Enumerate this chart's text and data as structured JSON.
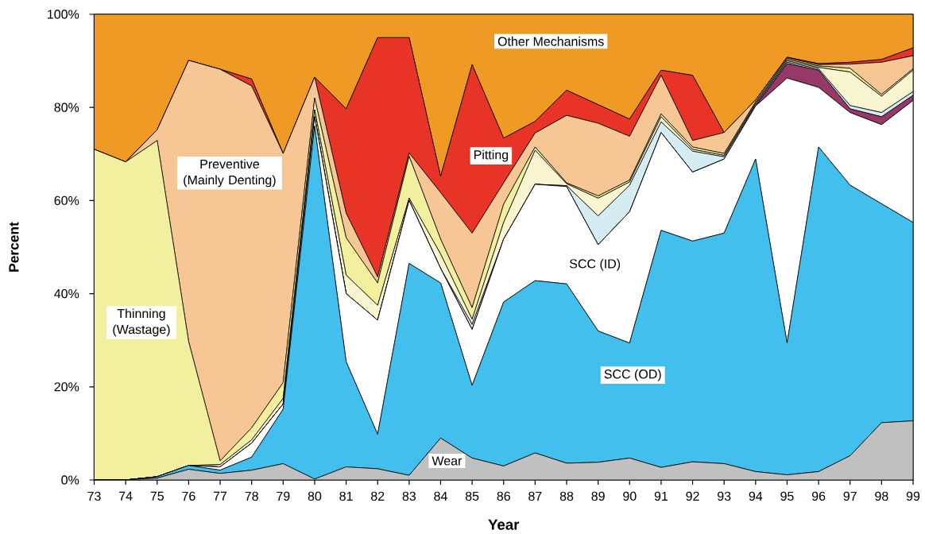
{
  "chart_data": {
    "type": "area",
    "stacked": true,
    "xlabel": "Year",
    "ylabel": "Percent",
    "x": [
      73,
      74,
      75,
      76,
      77,
      78,
      79,
      80,
      81,
      82,
      83,
      84,
      85,
      86,
      87,
      88,
      89,
      90,
      91,
      92,
      93,
      94,
      95,
      96,
      97,
      98,
      99
    ],
    "xlim": [
      73,
      99
    ],
    "xticks": [
      73,
      74,
      75,
      76,
      77,
      78,
      79,
      80,
      81,
      82,
      83,
      84,
      85,
      86,
      87,
      88,
      89,
      90,
      91,
      92,
      93,
      94,
      95,
      96,
      97,
      98,
      99
    ],
    "ylim": [
      0,
      100
    ],
    "yticks": [
      {
        "value": 0,
        "label": "0%"
      },
      {
        "value": 20,
        "label": "20%"
      },
      {
        "value": 40,
        "label": "40%"
      },
      {
        "value": 60,
        "label": "60%"
      },
      {
        "value": 80,
        "label": "80%"
      },
      {
        "value": 100,
        "label": "100%"
      }
    ],
    "series": [
      {
        "name": "Wear",
        "color": "#c0c0c0",
        "values": [
          0,
          0,
          0.4,
          2.3,
          1.4,
          2.1,
          3.5,
          0.2,
          2.8,
          2.4,
          1.0,
          9.0,
          4.7,
          3.0,
          5.8,
          3.6,
          3.8,
          4.7,
          2.7,
          3.9,
          3.5,
          1.8,
          1.1,
          1.8,
          5.2,
          12.3,
          12.7
        ]
      },
      {
        "name": "SCC (OD)",
        "color": "#42bfec",
        "values": [
          0,
          0,
          0.3,
          0.8,
          0.7,
          2.8,
          11.7,
          75.8,
          22.6,
          7.4,
          45.5,
          33.3,
          15.6,
          35.2,
          37.0,
          38.5,
          28.2,
          24.7,
          50.9,
          47.4,
          49.5,
          67.1,
          28.3,
          69.7,
          58.1,
          47.0,
          42.6
        ]
      },
      {
        "name": "SCC (ID)",
        "color": "#ffffff",
        "values": [
          0,
          0,
          0,
          0,
          0.7,
          3.0,
          1.1,
          2.0,
          14.6,
          24.5,
          13.5,
          3.1,
          12.0,
          13.5,
          20.7,
          20.9,
          18.5,
          28.2,
          21.0,
          14.8,
          15.9,
          11.4,
          56.9,
          12.8,
          15.6,
          17.0,
          26.2
        ]
      },
      {
        "color": "#963868",
        "values": [
          0,
          0,
          0,
          0,
          0,
          0,
          0,
          0,
          0,
          0,
          0,
          0,
          0,
          0,
          0,
          0,
          0,
          0,
          0,
          0,
          0,
          0,
          3.1,
          3.7,
          0.8,
          1.7,
          1.1
        ]
      },
      {
        "color": "#d4ecf2",
        "values": [
          0,
          0,
          0,
          0,
          0,
          0,
          0,
          0,
          0,
          0,
          0,
          0,
          1.1,
          0,
          0,
          0.2,
          6.2,
          5.7,
          2.3,
          4.5,
          0.5,
          0.3,
          0.3,
          0.3,
          0.7,
          0.9,
          0.8
        ]
      },
      {
        "color": "#f8f5d0",
        "values": [
          0,
          0,
          0,
          0,
          0.5,
          0.7,
          1.2,
          1.5,
          4.0,
          3.2,
          0.5,
          3.1,
          1.1,
          3.6,
          7.3,
          0.4,
          3.8,
          0.7,
          1.1,
          0.4,
          0.3,
          0.3,
          0.3,
          0.3,
          7.2,
          3.5,
          4.6
        ]
      },
      {
        "name": "Thinning (Wastage)",
        "color": "#f2ef9e",
        "values": [
          71,
          68.3,
          72.2,
          26.6,
          0.8,
          2.6,
          3.4,
          2.5,
          8.0,
          4.8,
          9.0,
          3.2,
          2.5,
          3.9,
          0.7,
          0.2,
          0.5,
          0.4,
          0.6,
          0.5,
          0.4,
          0.3,
          0.3,
          0.3,
          0.8,
          0.4,
          0.3
        ]
      },
      {
        "name": "Preventive (Mainly Denting)",
        "color": "#f6c795",
        "values": [
          0,
          0,
          2.3,
          60.4,
          84.1,
          73.4,
          49.2,
          4.5,
          5.3,
          1.3,
          0.7,
          10.0,
          16.0,
          4.6,
          3.0,
          14.5,
          15.6,
          9.4,
          8.3,
          1.4,
          4.5,
          0.4,
          0.3,
          0.3,
          0.9,
          6.9,
          2.8
        ]
      },
      {
        "name": "Pitting",
        "color": "#e83426",
        "values": [
          0,
          0,
          0,
          0,
          0,
          1.5,
          0,
          0,
          22.4,
          51.4,
          24.8,
          3.5,
          36.2,
          9.6,
          2.5,
          5.4,
          4.0,
          3.7,
          1.1,
          14.0,
          0,
          0,
          0.2,
          0.2,
          0.4,
          0.6,
          1.7
        ]
      },
      {
        "name": "Other Mechanisms",
        "color": "#ee9a24",
        "values": [
          29,
          31.7,
          24.8,
          9.9,
          11.8,
          13.9,
          29.9,
          13.5,
          20.3,
          5,
          5,
          34.8,
          10.8,
          26.6,
          23.0,
          16.3,
          19.4,
          22.5,
          12,
          13.1,
          25.4,
          18.4,
          9.2,
          10.6,
          10.3,
          9.7,
          7.2
        ]
      }
    ]
  }
}
